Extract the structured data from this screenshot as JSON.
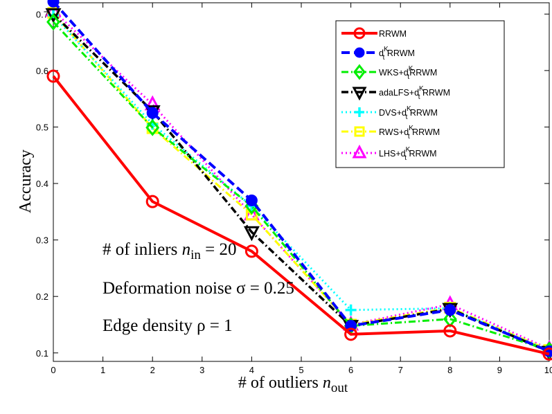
{
  "chart_data": {
    "type": "line",
    "title": "",
    "xlabel": "# of outliers",
    "xlabel_sym": "n",
    "xlabel_sub": "out",
    "ylabel": "Accuracy",
    "xlim": [
      0,
      10
    ],
    "ylim": [
      0.085,
      0.72
    ],
    "xticks": [
      0,
      1,
      2,
      3,
      4,
      5,
      6,
      7,
      8,
      9,
      10
    ],
    "yticks": [
      0.1,
      0.2,
      0.3,
      0.4,
      0.5,
      0.6,
      0.7
    ],
    "grid": false,
    "legend_position": "top-right",
    "x": [
      0,
      2,
      4,
      6,
      8,
      10
    ],
    "series": [
      {
        "name": "RRWM",
        "label_main": "RRWM",
        "label_sup": "",
        "label_sub": "",
        "label_tail": "",
        "color": "#ff0000",
        "dash": "",
        "width": 4,
        "marker": "circle",
        "values": [
          0.59,
          0.368,
          0.28,
          0.133,
          0.139,
          0.098
        ]
      },
      {
        "name": "d_t^K RRWM",
        "label_main": "d",
        "label_sup": "K",
        "label_sub": "t",
        "label_tail": " RRWM",
        "color": "#0000ff",
        "dash": "12,6",
        "width": 4,
        "marker": "filled-circle",
        "values": [
          0.722,
          0.525,
          0.37,
          0.148,
          0.176,
          0.103
        ]
      },
      {
        "name": "WKS+d_t^K RRWM",
        "label_main": "WKS+d",
        "label_sup": "K",
        "label_sub": "t",
        "label_tail": "RRWM",
        "color": "#00ee00",
        "dash": "10,4,2,4",
        "width": 3,
        "marker": "diamond",
        "values": [
          0.686,
          0.499,
          0.36,
          0.148,
          0.16,
          0.105
        ]
      },
      {
        "name": "adaLFS+d_t^K RRWM",
        "label_main": "adaLFS+d",
        "label_sup": "K",
        "label_sub": "t",
        "label_tail": " RRWM",
        "color": "#000000",
        "dash": "10,4,2,4",
        "width": 3.5,
        "marker": "triangle-down",
        "values": [
          0.7,
          0.528,
          0.314,
          0.148,
          0.178,
          0.102
        ]
      },
      {
        "name": "DVS+d_t^K RRWM",
        "label_main": "DVS+d",
        "label_sup": "K",
        "label_sub": "t",
        "label_tail": " RRWM",
        "color": "#00ffff",
        "dash": "2,4",
        "width": 3,
        "marker": "plus",
        "values": [
          0.698,
          0.505,
          0.36,
          0.176,
          0.179,
          0.104
        ]
      },
      {
        "name": "RWS+d_t^K RRWM",
        "label_main": "RWS+d",
        "label_sup": "K",
        "label_sub": "t",
        "label_tail": " RRWM",
        "color": "#ffff00",
        "dash": "10,4,2,4",
        "width": 3,
        "marker": "square",
        "values": [
          0.702,
          0.498,
          0.345,
          0.15,
          0.18,
          0.105
        ]
      },
      {
        "name": "LHS+d_t^K RRWM",
        "label_main": "LHS+d",
        "label_sup": "K",
        "label_sub": "t",
        "label_tail": " RRWM",
        "color": "#ff00ff",
        "dash": "2,4",
        "width": 3,
        "marker": "triangle-up",
        "values": [
          0.706,
          0.54,
          0.345,
          0.15,
          0.186,
          0.107
        ]
      }
    ],
    "annotations": [
      {
        "text": "# of inliers ",
        "sym": "n",
        "sub": "in",
        "tail": " = 20"
      },
      {
        "text": "Deformation noise σ = 0.25",
        "sym": "",
        "sub": "",
        "tail": ""
      },
      {
        "text": "Edge density ρ = 1",
        "sym": "",
        "sub": "",
        "tail": ""
      }
    ]
  }
}
